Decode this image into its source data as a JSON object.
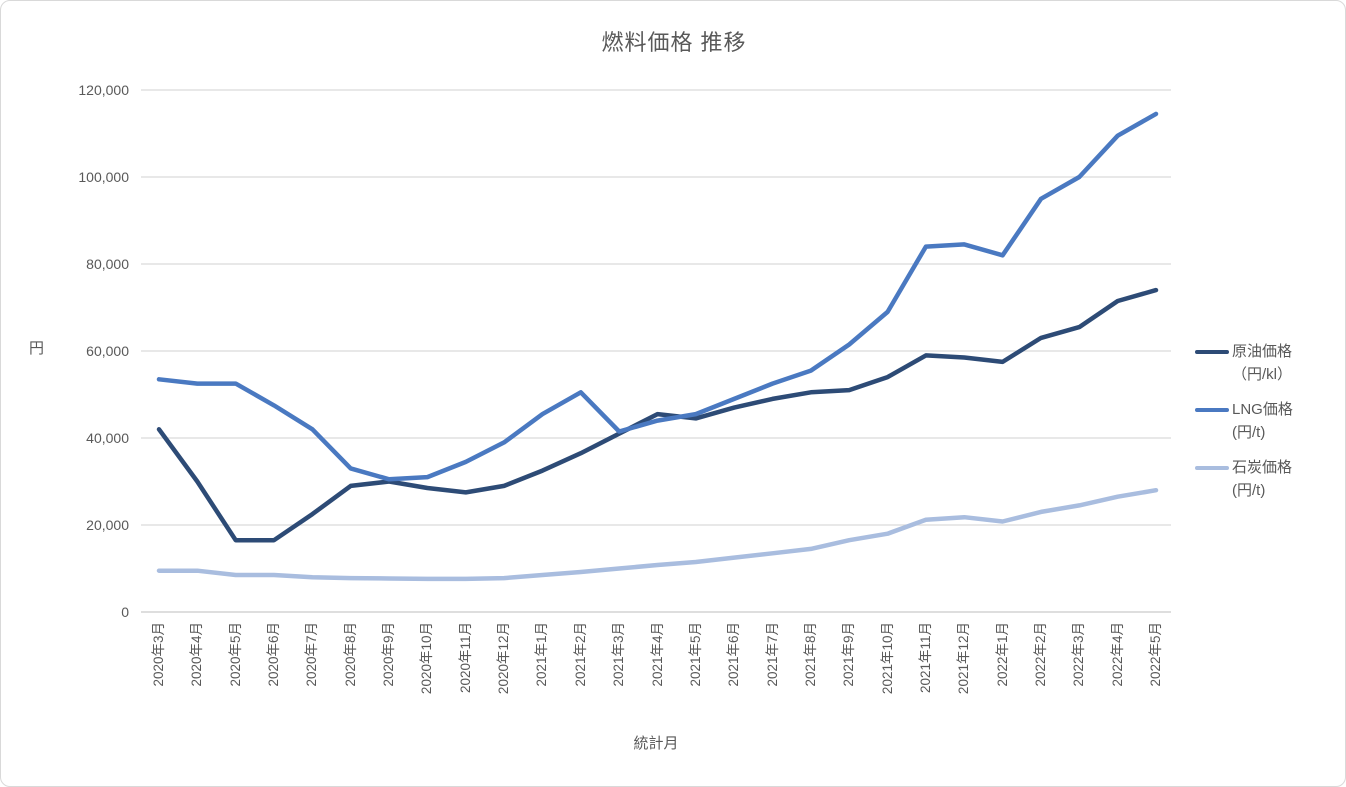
{
  "title": "燃料価格 推移",
  "y_axis": {
    "title": "円",
    "tick_labels": [
      "0",
      "20,000",
      "40,000",
      "60,000",
      "80,000",
      "100,000",
      "120,000"
    ],
    "tick_values": [
      0,
      20000,
      40000,
      60000,
      80000,
      100000,
      120000
    ]
  },
  "x_axis": {
    "title": "統計月"
  },
  "legend": {
    "items": [
      {
        "id": "crude-oil",
        "line1": "原油価格",
        "line2": "（円/kl）",
        "color": "#2D4B76"
      },
      {
        "id": "lng",
        "line1": "LNG価格",
        "line2": "(円/t)",
        "color": "#4A79C1"
      },
      {
        "id": "coal",
        "line1": "石炭価格",
        "line2": "(円/t)",
        "color": "#A9BDDF"
      }
    ]
  },
  "chart_data": {
    "type": "line",
    "title": "燃料価格 推移",
    "xlabel": "統計月",
    "ylabel": "円",
    "ylim": [
      0,
      120000
    ],
    "y_tick_step": 20000,
    "grid": true,
    "legend_position": "right",
    "categories": [
      "2020年3月",
      "2020年4月",
      "2020年5月",
      "2020年6月",
      "2020年7月",
      "2020年8月",
      "2020年9月",
      "2020年10月",
      "2020年11月",
      "2020年12月",
      "2021年1月",
      "2021年2月",
      "2021年3月",
      "2021年4月",
      "2021年5月",
      "2021年6月",
      "2021年7月",
      "2021年8月",
      "2021年9月",
      "2021年10月",
      "2021年11月",
      "2021年12月",
      "2022年1月",
      "2022年2月",
      "2022年3月",
      "2022年4月",
      "2022年5月"
    ],
    "series": [
      {
        "id": "crude-oil",
        "name": "原油価格（円/kl）",
        "color": "#2D4B76",
        "values": [
          42000,
          30000,
          16500,
          16500,
          22500,
          29000,
          30000,
          28500,
          27500,
          29000,
          32500,
          36500,
          41000,
          45500,
          44500,
          47000,
          49000,
          50500,
          51000,
          54000,
          59000,
          58500,
          57500,
          63000,
          65500,
          71500,
          74000
        ]
      },
      {
        "id": "lng",
        "name": "LNG価格 (円/t)",
        "color": "#4A79C1",
        "values": [
          53500,
          52500,
          52500,
          47500,
          42000,
          33000,
          30500,
          31000,
          34500,
          39000,
          45500,
          50500,
          41500,
          44000,
          45500,
          49000,
          52500,
          55500,
          61500,
          69000,
          84000,
          84500,
          82000,
          95000,
          100000,
          109500,
          114500
        ]
      },
      {
        "id": "coal",
        "name": "石炭価格 (円/t)",
        "color": "#A9BDDF",
        "values": [
          9500,
          9500,
          8500,
          8500,
          8000,
          7800,
          7700,
          7600,
          7600,
          7800,
          8500,
          9200,
          10000,
          10800,
          11500,
          12500,
          13500,
          14500,
          16500,
          18000,
          21200,
          21800,
          20800,
          23000,
          24500,
          26500,
          28000
        ]
      }
    ]
  }
}
